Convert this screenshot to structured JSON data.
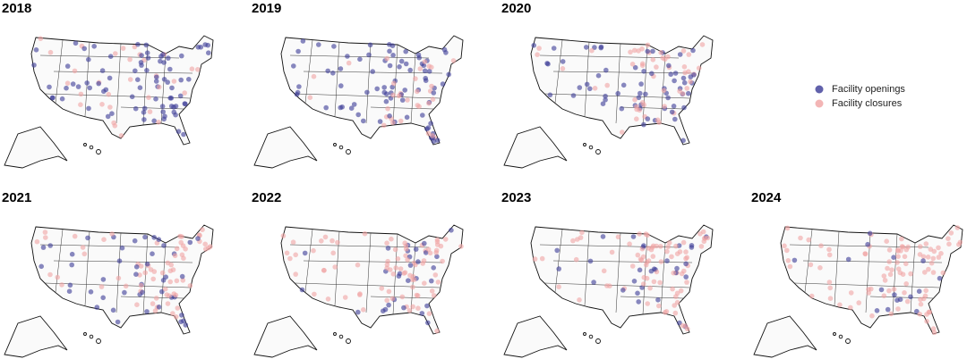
{
  "panels": [
    {
      "title": "2018"
    },
    {
      "title": "2019"
    },
    {
      "title": "2020"
    },
    {
      "title": "2021"
    },
    {
      "title": "2022"
    },
    {
      "title": "2023"
    },
    {
      "title": "2024"
    }
  ],
  "legend": {
    "items": [
      {
        "label": "Facility openings",
        "color": "#3a3a96"
      },
      {
        "label": "Facility closures",
        "color": "#f0a3a3"
      }
    ]
  }
}
